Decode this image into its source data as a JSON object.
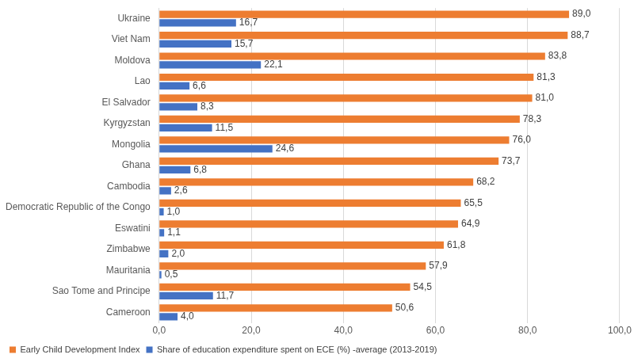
{
  "chart_data": {
    "type": "bar",
    "orientation": "horizontal",
    "categories": [
      "Ukraine",
      "Viet Nam",
      "Moldova",
      "Lao",
      "El Salvador",
      "Kyrgyzstan",
      "Mongolia",
      "Ghana",
      "Cambodia",
      "Democratic Republic of the Congo",
      "Eswatini",
      "Zimbabwe",
      "Mauritania",
      "Sao Tome and Principe",
      "Cameroon"
    ],
    "series": [
      {
        "name": "Early Child Development Index",
        "color": "#ED7D31",
        "values": [
          89.0,
          88.7,
          83.8,
          81.3,
          81.0,
          78.3,
          76.0,
          73.7,
          68.2,
          65.5,
          64.9,
          61.8,
          57.9,
          54.5,
          50.6
        ],
        "value_labels": [
          "89,0",
          "88,7",
          "83,8",
          "81,3",
          "81,0",
          "78,3",
          "76,0",
          "73,7",
          "68,2",
          "65,5",
          "64,9",
          "61,8",
          "57,9",
          "54,5",
          "50,6"
        ]
      },
      {
        "name": "Share of education expenditure spent on ECE (%) -average (2013-2019)",
        "color": "#4472C4",
        "values": [
          16.7,
          15.7,
          22.1,
          6.6,
          8.3,
          11.5,
          24.6,
          6.8,
          2.6,
          1.0,
          1.1,
          2.0,
          0.5,
          11.7,
          4.0
        ],
        "value_labels": [
          "16,7",
          "15,7",
          "22,1",
          "6,6",
          "8,3",
          "11,5",
          "24,6",
          "6,8",
          "2,6",
          "1,0",
          "1,1",
          "2,0",
          "0,5",
          "11,7",
          "4,0"
        ]
      }
    ],
    "xlim": [
      0,
      100
    ],
    "xticks": [
      {
        "value": 0,
        "label": "0,0"
      },
      {
        "value": 20,
        "label": "20,0"
      },
      {
        "value": 40,
        "label": "40,0"
      },
      {
        "value": 60,
        "label": "60,0"
      },
      {
        "value": 80,
        "label": "80,0"
      },
      {
        "value": 100,
        "label": "100,0"
      }
    ],
    "grid": true,
    "legend": "bottom-left",
    "data_labels": true
  }
}
